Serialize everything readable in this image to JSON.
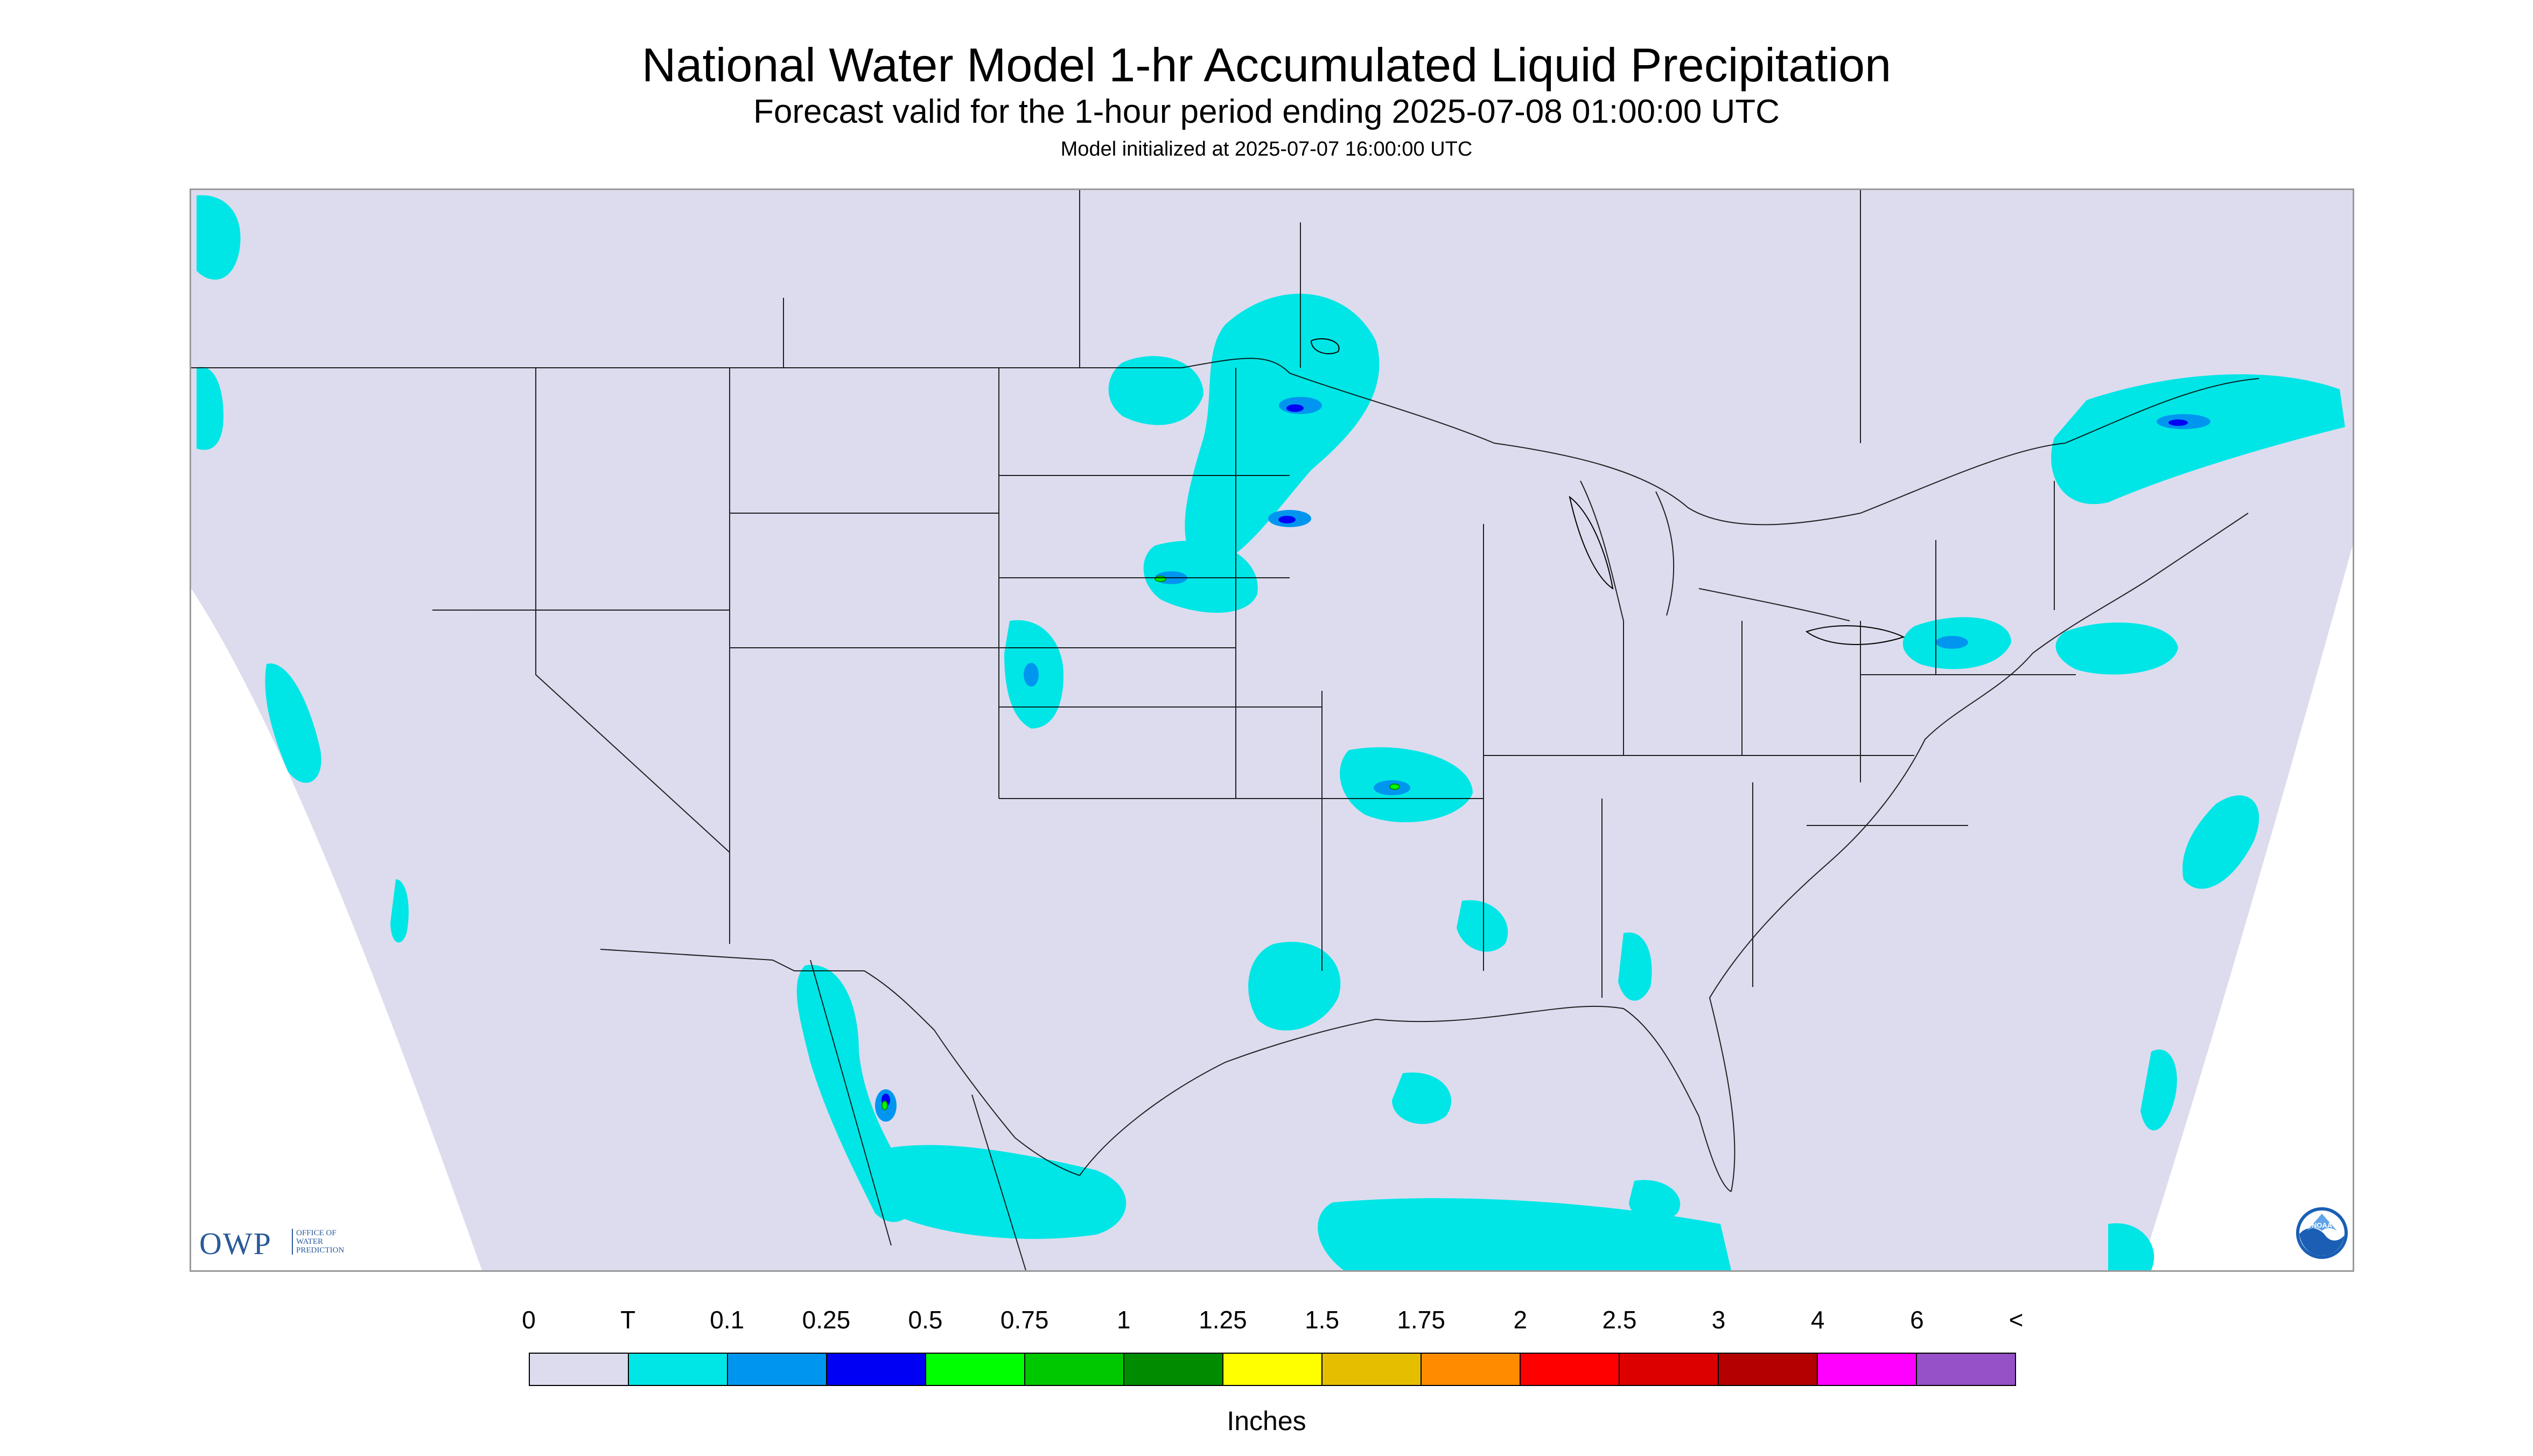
{
  "header": {
    "title": "National Water Model 1-hr Accumulated Liquid Precipitation",
    "subtitle": "Forecast valid for the 1-hour period ending 2025-07-08 01:00:00 UTC",
    "init": "Model initialized at 2025-07-07 16:00:00 UTC"
  },
  "logos": {
    "owp": "OWP",
    "owp_sub": [
      "OFFICE OF",
      "WATER",
      "PREDICTION"
    ],
    "noaa": "NOAA"
  },
  "legend": {
    "labels": [
      "0",
      "T",
      "0.1",
      "0.25",
      "0.5",
      "0.75",
      "1",
      "1.25",
      "1.5",
      "1.75",
      "2",
      "2.5",
      "3",
      "4",
      "6",
      "<"
    ],
    "colors": [
      "#dcdcee",
      "#00e6e6",
      "#0096f0",
      "#0000f5",
      "#00ff00",
      "#00c800",
      "#008c00",
      "#ffff00",
      "#e6be00",
      "#ff8c00",
      "#ff0000",
      "#dc0000",
      "#b40000",
      "#ff00ff",
      "#9650c8"
    ],
    "units": "Inches"
  },
  "colors": {
    "domain": "#dcdcee",
    "outside": "#ffffff",
    "border": "#000000"
  }
}
